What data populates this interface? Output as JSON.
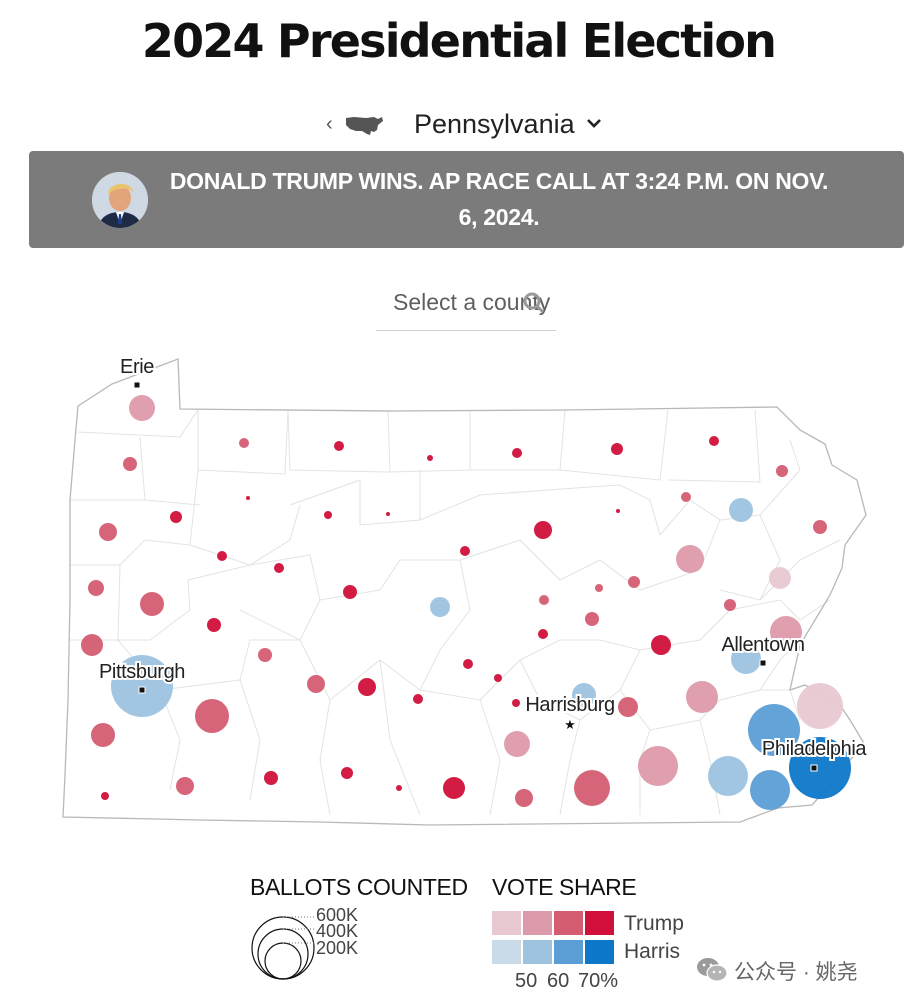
{
  "header": {
    "title": "2024 Presidential Election"
  },
  "state_selector": {
    "back_icon": "chevron-left-icon",
    "map_icon": "us-map-icon",
    "state": "Pennsylvania",
    "dropdown_icon": "chevron-down-icon"
  },
  "banner": {
    "text": "DONALD TRUMP WINS. AP RACE CALL AT 3:24 P.M. ON NOV. 6, 2024.",
    "background": "#7b7b7b"
  },
  "search": {
    "placeholder": "Select a county",
    "icon": "search-icon"
  },
  "map": {
    "city_labels": [
      "Erie",
      "Pittsburgh",
      "Harrisburg",
      "Allentown",
      "Philadelphia"
    ],
    "colors": {
      "trump": [
        "#e8c9d1",
        "#dd9aaa",
        "#d55d72",
        "#d0103a"
      ],
      "harris": [
        "#c9dbe9",
        "#9dc3df",
        "#5b9ed6",
        "#0d77c9"
      ]
    }
  },
  "legend": {
    "ballots_title": "BALLOTS COUNTED",
    "sizes": [
      "600K",
      "400K",
      "200K"
    ],
    "vote_title": "VOTE SHARE",
    "candidates": [
      "Trump",
      "Harris"
    ],
    "ticks": [
      "50",
      "60",
      "70%"
    ]
  },
  "watermark": {
    "text": "公众号 · 姚尧",
    "icon": "wechat-icon"
  }
}
